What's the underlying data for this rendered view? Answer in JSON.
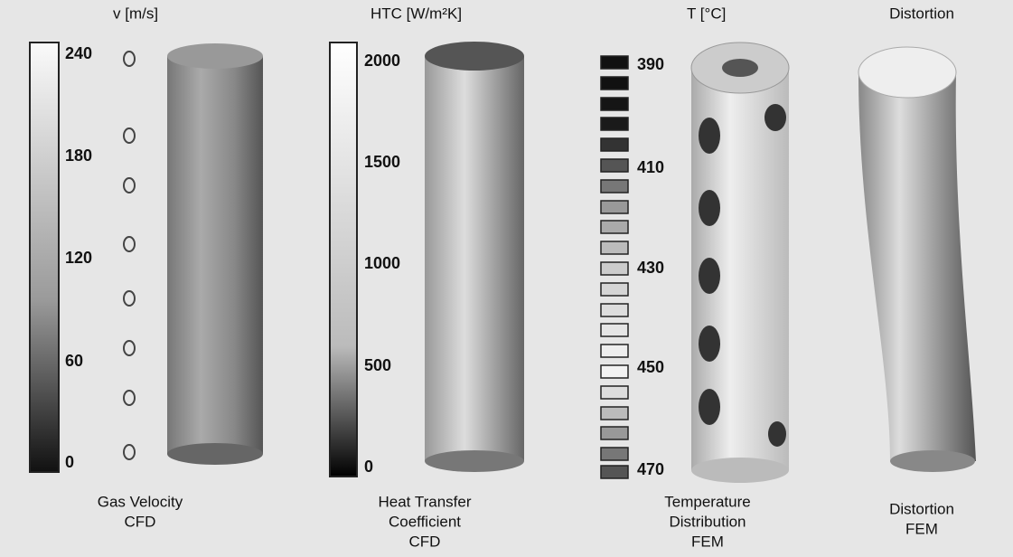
{
  "panels": [
    {
      "title": "v [m/s]",
      "ticks": [
        240,
        180,
        120,
        60,
        0
      ],
      "caption": [
        "Gas Velocity",
        "CFD"
      ]
    },
    {
      "title": "HTC [W/m²K]",
      "ticks": [
        2000,
        1500,
        1000,
        500,
        0
      ],
      "caption": [
        "Heat Transfer",
        "Coefficient",
        "CFD"
      ]
    },
    {
      "title": "T [°C]",
      "ticks": [
        390,
        410,
        430,
        450,
        470
      ],
      "caption": [
        "Temperature",
        "Distribution",
        "FEM"
      ]
    },
    {
      "title": "Distortion",
      "caption": [
        "Distortion",
        "FEM"
      ]
    }
  ]
}
